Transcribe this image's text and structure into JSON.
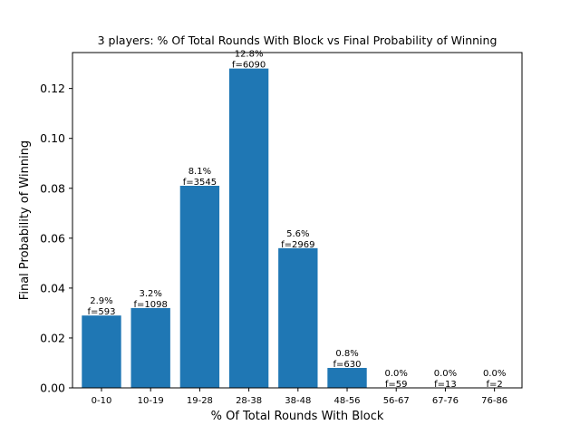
{
  "chart_data": {
    "type": "bar",
    "title": "3 players: % Of Total Rounds With Block vs Final Probability of Winning",
    "xlabel": "% Of Total Rounds With Block",
    "ylabel": "Final Probability of Winning",
    "categories": [
      "0-10",
      "10-19",
      "19-28",
      "28-38",
      "38-48",
      "48-56",
      "56-67",
      "67-76",
      "76-86"
    ],
    "values": [
      0.029,
      0.032,
      0.081,
      0.128,
      0.056,
      0.008,
      0.0,
      0.0,
      0.0
    ],
    "percent_labels": [
      "2.9%",
      "3.2%",
      "8.1%",
      "12.8%",
      "5.6%",
      "0.8%",
      "0.0%",
      "0.0%",
      "0.0%"
    ],
    "frequency_labels": [
      "f=593",
      "f=1098",
      "f=3545",
      "f=6090",
      "f=2969",
      "f=630",
      "f=59",
      "f=13",
      "f=2"
    ],
    "ylim": [
      0,
      0.1344
    ],
    "yticks": [
      0.0,
      0.02,
      0.04,
      0.06,
      0.08,
      0.1,
      0.12
    ],
    "ytick_labels": [
      "0.00",
      "0.02",
      "0.04",
      "0.06",
      "0.08",
      "0.10",
      "0.12"
    ],
    "bar_color": "#1f77b4",
    "grid": false,
    "legend": "none"
  }
}
